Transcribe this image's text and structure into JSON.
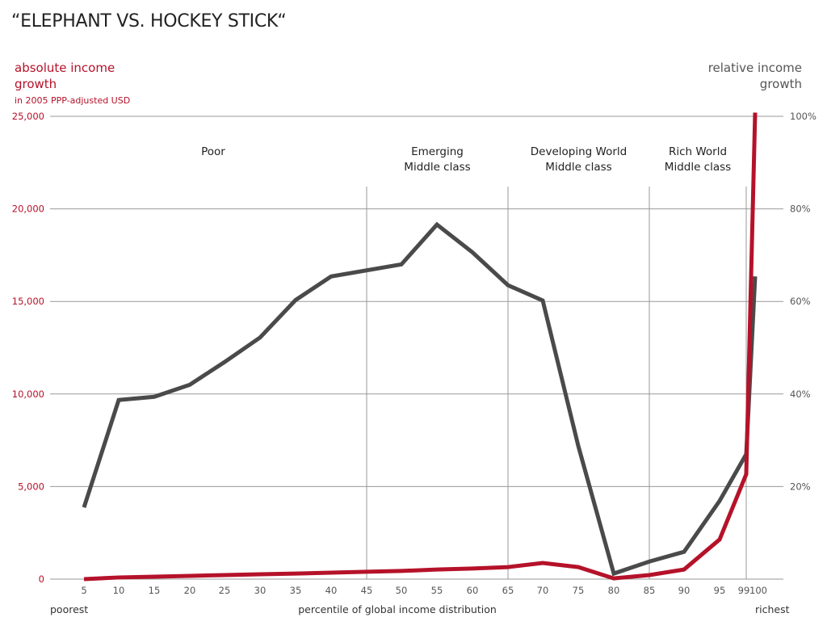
{
  "chart_data": {
    "type": "line",
    "title": "“ELEPHANT VS. HOCKEY STICK“",
    "xlabel": "percentile of global income distribution",
    "x_left_label": "poorest",
    "x_right_label": "richest",
    "y_left_label": [
      "absolute income",
      "growth"
    ],
    "y_left_sublabel": "in 2005 PPP-adjusted USD",
    "y_right_label": [
      "relative income",
      "growth"
    ],
    "ylim_left": [
      0,
      25000
    ],
    "ylim_right": [
      0,
      100
    ],
    "yticks_left": [
      "0",
      "5,000",
      "10,000",
      "15,000",
      "20,000",
      "25,000"
    ],
    "yticks_right": [
      "20%",
      "40%",
      "60%",
      "80%",
      "100%"
    ],
    "xticks": [
      "5",
      "10",
      "15",
      "20",
      "25",
      "30",
      "35",
      "40",
      "45",
      "50",
      "55",
      "60",
      "65",
      "70",
      "75",
      "80",
      "85",
      "90",
      "95",
      "99",
      "100"
    ],
    "grid": "horizontal",
    "regions": [
      {
        "label": [
          "Poor"
        ],
        "from": 5,
        "to": 45
      },
      {
        "label": [
          "Emerging",
          "Middle class"
        ],
        "from": 45,
        "to": 65
      },
      {
        "label": [
          "Developing World",
          "Middle class"
        ],
        "from": 65,
        "to": 85
      },
      {
        "label": [
          "Rich World",
          "Middle class"
        ],
        "from": 85,
        "to": 99
      }
    ],
    "series": [
      {
        "axis": "right",
        "color": "#4a4a4a",
        "x": [
          5,
          10,
          15,
          20,
          25,
          30,
          35,
          40,
          50,
          55,
          60,
          65,
          70,
          75,
          80,
          85,
          90,
          95,
          99,
          100
        ],
        "values": [
          15.5,
          38.7,
          39.4,
          42,
          46.9,
          52.2,
          60.3,
          65.4,
          68,
          76.6,
          70.6,
          63.5,
          60.2,
          28.8,
          1.2,
          3.8,
          5.9,
          16.9,
          27,
          65.4
        ]
      },
      {
        "axis": "left",
        "color": "#b5122a",
        "x": [
          5,
          10,
          15,
          20,
          25,
          30,
          35,
          40,
          45,
          50,
          55,
          60,
          65,
          70,
          75,
          80,
          85,
          90,
          95,
          99,
          100
        ],
        "values": [
          0,
          90,
          130,
          175,
          220,
          260,
          300,
          350,
          400,
          440,
          520,
          570,
          650,
          870,
          650,
          40,
          220,
          520,
          2140,
          5670,
          25200
        ]
      }
    ]
  }
}
